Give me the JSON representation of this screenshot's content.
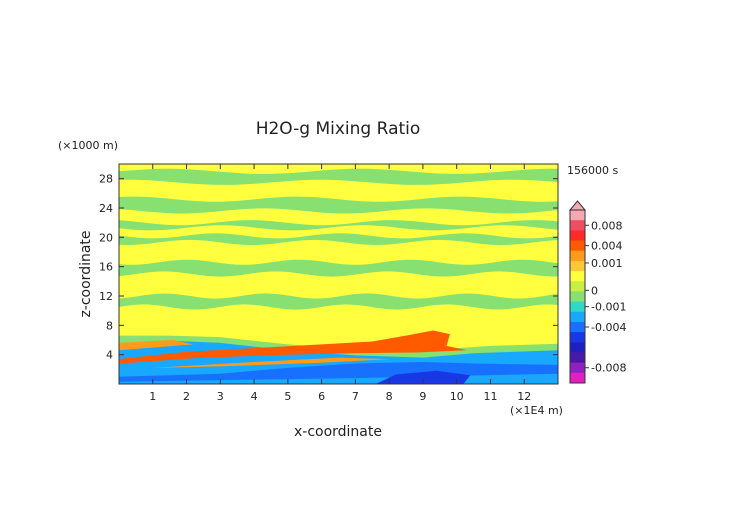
{
  "chart_data": {
    "type": "heatmap",
    "title": "H2O-g Mixing Ratio",
    "xlabel": "x-coordinate",
    "ylabel": "z-coordinate",
    "x_unit": "(×1E4 m)",
    "y_unit": "(×1000 m)",
    "time_label": "156000 s",
    "xlim": [
      0,
      13
    ],
    "ylim": [
      0,
      30
    ],
    "x_ticks": [
      1,
      2,
      3,
      4,
      5,
      6,
      7,
      8,
      9,
      10,
      11,
      12
    ],
    "y_ticks": [
      4,
      8,
      12,
      16,
      20,
      24,
      28
    ],
    "colorbar": {
      "labels": [
        "0.008",
        "0.004",
        "0.001",
        "0",
        "-0.001",
        "-0.004",
        "-0.008"
      ],
      "levels": [
        {
          "value": 0.009,
          "color": "#f4a8b0"
        },
        {
          "value": 0.008,
          "color": "#ef4d60"
        },
        {
          "value": 0.006,
          "color": "#ff2a2a"
        },
        {
          "value": 0.004,
          "color": "#ff5a00"
        },
        {
          "value": 0.002,
          "color": "#ff9a1a"
        },
        {
          "value": 0.001,
          "color": "#ffc83a"
        },
        {
          "value": 0.0005,
          "color": "#ffff40"
        },
        {
          "value": 0,
          "color": "#c8f040"
        },
        {
          "value": -0.0005,
          "color": "#88e070"
        },
        {
          "value": -0.001,
          "color": "#30d8c8"
        },
        {
          "value": -0.002,
          "color": "#18a8ff"
        },
        {
          "value": -0.004,
          "color": "#1870ff"
        },
        {
          "value": -0.005,
          "color": "#1838e8"
        },
        {
          "value": -0.006,
          "color": "#2020c0"
        },
        {
          "value": -0.007,
          "color": "#4818a8"
        },
        {
          "value": -0.008,
          "color": "#9020c0"
        },
        {
          "value": -0.009,
          "color": "#e020c0"
        }
      ]
    },
    "bands": [
      {
        "name": "upper-green-1",
        "z": [
          27.5,
          29.0
        ],
        "value": -0.0005
      },
      {
        "name": "upper-green-2",
        "z": [
          23.6,
          25.2
        ],
        "value": -0.0005
      },
      {
        "name": "mid-green-1",
        "z": [
          21.3,
          22.0
        ],
        "value": -0.0005
      },
      {
        "name": "mid-green-2",
        "z": [
          19.3,
          20.2
        ],
        "value": -0.0005
      },
      {
        "name": "mid-green-3",
        "z": [
          15.0,
          16.6
        ],
        "value": -0.0005
      },
      {
        "name": "low-green",
        "z": [
          10.5,
          12.0
        ],
        "value": -0.0005
      },
      {
        "name": "boundary-layer-blue",
        "z": [
          1.0,
          4.5
        ],
        "value": -0.002
      },
      {
        "name": "boundary-layer-red",
        "z": [
          2.0,
          6.5
        ],
        "value": 0.004
      }
    ]
  }
}
